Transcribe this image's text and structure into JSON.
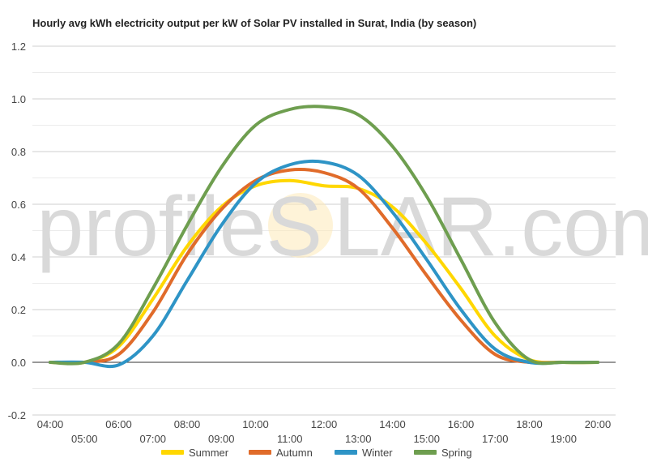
{
  "chart_data": {
    "type": "line",
    "title": "Hourly avg kWh electricity output per kW of Solar PV installed in Surat, India (by season)",
    "xlabel": "",
    "ylabel": "",
    "x": [
      "04:00",
      "05:00",
      "06:00",
      "07:00",
      "08:00",
      "09:00",
      "10:00",
      "11:00",
      "12:00",
      "13:00",
      "14:00",
      "15:00",
      "16:00",
      "17:00",
      "18:00",
      "19:00",
      "20:00"
    ],
    "x_tick_labels_upper": [
      "04:00",
      "06:00",
      "08:00",
      "10:00",
      "12:00",
      "14:00",
      "16:00",
      "18:00",
      "20:00"
    ],
    "x_tick_labels_lower": [
      "05:00",
      "07:00",
      "09:00",
      "11:00",
      "13:00",
      "15:00",
      "17:00",
      "19:00"
    ],
    "y_ticks": [
      "-0.2",
      "0.0",
      "0.2",
      "0.4",
      "0.6",
      "0.8",
      "1.0",
      "1.2"
    ],
    "ylim": [
      -0.2,
      1.2
    ],
    "grid": true,
    "legend_position": "bottom",
    "series": [
      {
        "name": "Summer",
        "color": "#FFD700",
        "values": [
          0.0,
          0.0,
          0.06,
          0.24,
          0.44,
          0.59,
          0.67,
          0.69,
          0.67,
          0.66,
          0.59,
          0.45,
          0.28,
          0.1,
          0.01,
          0.0,
          0.0
        ]
      },
      {
        "name": "Autumn",
        "color": "#E06B2A",
        "values": [
          0.0,
          0.0,
          0.03,
          0.19,
          0.41,
          0.58,
          0.69,
          0.73,
          0.72,
          0.66,
          0.51,
          0.33,
          0.16,
          0.03,
          0.0,
          0.0,
          0.0
        ]
      },
      {
        "name": "Winter",
        "color": "#2E94C6",
        "values": [
          0.0,
          0.0,
          -0.01,
          0.1,
          0.31,
          0.52,
          0.68,
          0.75,
          0.76,
          0.71,
          0.57,
          0.39,
          0.2,
          0.05,
          0.0,
          0.0,
          0.0
        ]
      },
      {
        "name": "Spring",
        "color": "#6E9E4F",
        "values": [
          0.0,
          0.0,
          0.07,
          0.28,
          0.52,
          0.74,
          0.9,
          0.96,
          0.97,
          0.94,
          0.82,
          0.63,
          0.39,
          0.15,
          0.01,
          0.0,
          0.0
        ]
      }
    ]
  },
  "watermark": {
    "text_left": "profileS",
    "text_right": "LAR.com"
  }
}
